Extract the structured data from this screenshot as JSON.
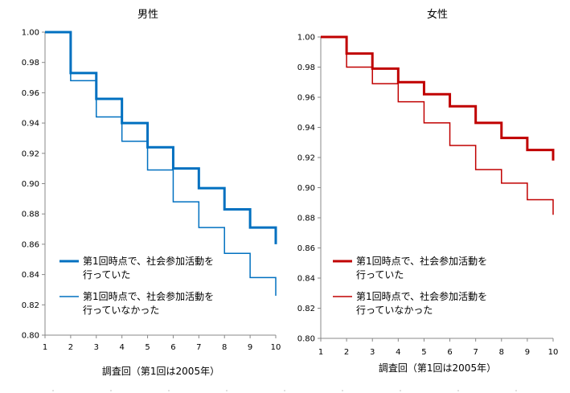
{
  "chart_data": [
    {
      "type": "line",
      "title": "男性",
      "xlabel": "調査回（第1回は2005年）",
      "ylabel": "",
      "x_ticks": [
        1,
        2,
        3,
        4,
        5,
        6,
        7,
        8,
        9,
        10
      ],
      "xlim": [
        1,
        10
      ],
      "ylim": [
        0.8,
        1.0
      ],
      "y_ticks": [
        "0.80",
        "0.82",
        "0.84",
        "0.86",
        "0.88",
        "0.90",
        "0.92",
        "0.94",
        "0.96",
        "0.98",
        "1.00"
      ],
      "step": true,
      "legend_position": "bottom-left",
      "series": [
        {
          "name": "第1回時点で、社会参加活動を 行っていた",
          "legend_lines": [
            "第1回時点で、社会参加活動を",
            "行っていた"
          ],
          "color": "#0070c0",
          "weight": "thick",
          "x": [
            1,
            2,
            3,
            4,
            5,
            6,
            7,
            8,
            9,
            10
          ],
          "values": [
            1.0,
            0.973,
            0.956,
            0.94,
            0.924,
            0.91,
            0.897,
            0.883,
            0.871,
            0.86
          ]
        },
        {
          "name": "第1回時点で、社会参加活動を 行っていなかった",
          "legend_lines": [
            "第1回時点で、社会参加活動を",
            "行っていなかった"
          ],
          "color": "#0070c0",
          "weight": "thin",
          "x": [
            1,
            2,
            3,
            4,
            5,
            6,
            7,
            8,
            9,
            10
          ],
          "values": [
            1.0,
            0.968,
            0.944,
            0.928,
            0.909,
            0.888,
            0.871,
            0.854,
            0.838,
            0.826
          ]
        }
      ]
    },
    {
      "type": "line",
      "title": "女性",
      "xlabel": "調査回（第1回は2005年）",
      "ylabel": "",
      "x_ticks": [
        1,
        2,
        3,
        4,
        5,
        6,
        7,
        8,
        9,
        10
      ],
      "xlim": [
        1,
        10
      ],
      "ylim": [
        0.8,
        1.0
      ],
      "y_ticks": [
        "0.80",
        "0.82",
        "0.84",
        "0.86",
        "0.88",
        "0.90",
        "0.92",
        "0.94",
        "0.96",
        "0.98",
        "1.00"
      ],
      "step": true,
      "legend_position": "bottom-left",
      "series": [
        {
          "name": "第1回時点で、社会参加活動を 行っていた",
          "legend_lines": [
            "第1回時点で、社会参加活動を",
            "行っていた"
          ],
          "color": "#c00000",
          "weight": "thick",
          "x": [
            1,
            2,
            3,
            4,
            5,
            6,
            7,
            8,
            9,
            10
          ],
          "values": [
            1.0,
            0.989,
            0.979,
            0.97,
            0.962,
            0.954,
            0.943,
            0.933,
            0.925,
            0.918
          ]
        },
        {
          "name": "第1回時点で、社会参加活動を 行っていなかった",
          "legend_lines": [
            "第1回時点で、社会参加活動を",
            "行っていなかった"
          ],
          "color": "#c00000",
          "weight": "thin",
          "x": [
            1,
            2,
            3,
            4,
            5,
            6,
            7,
            8,
            9,
            10
          ],
          "values": [
            1.0,
            0.98,
            0.969,
            0.957,
            0.943,
            0.928,
            0.912,
            0.903,
            0.892,
            0.882
          ]
        }
      ]
    }
  ]
}
